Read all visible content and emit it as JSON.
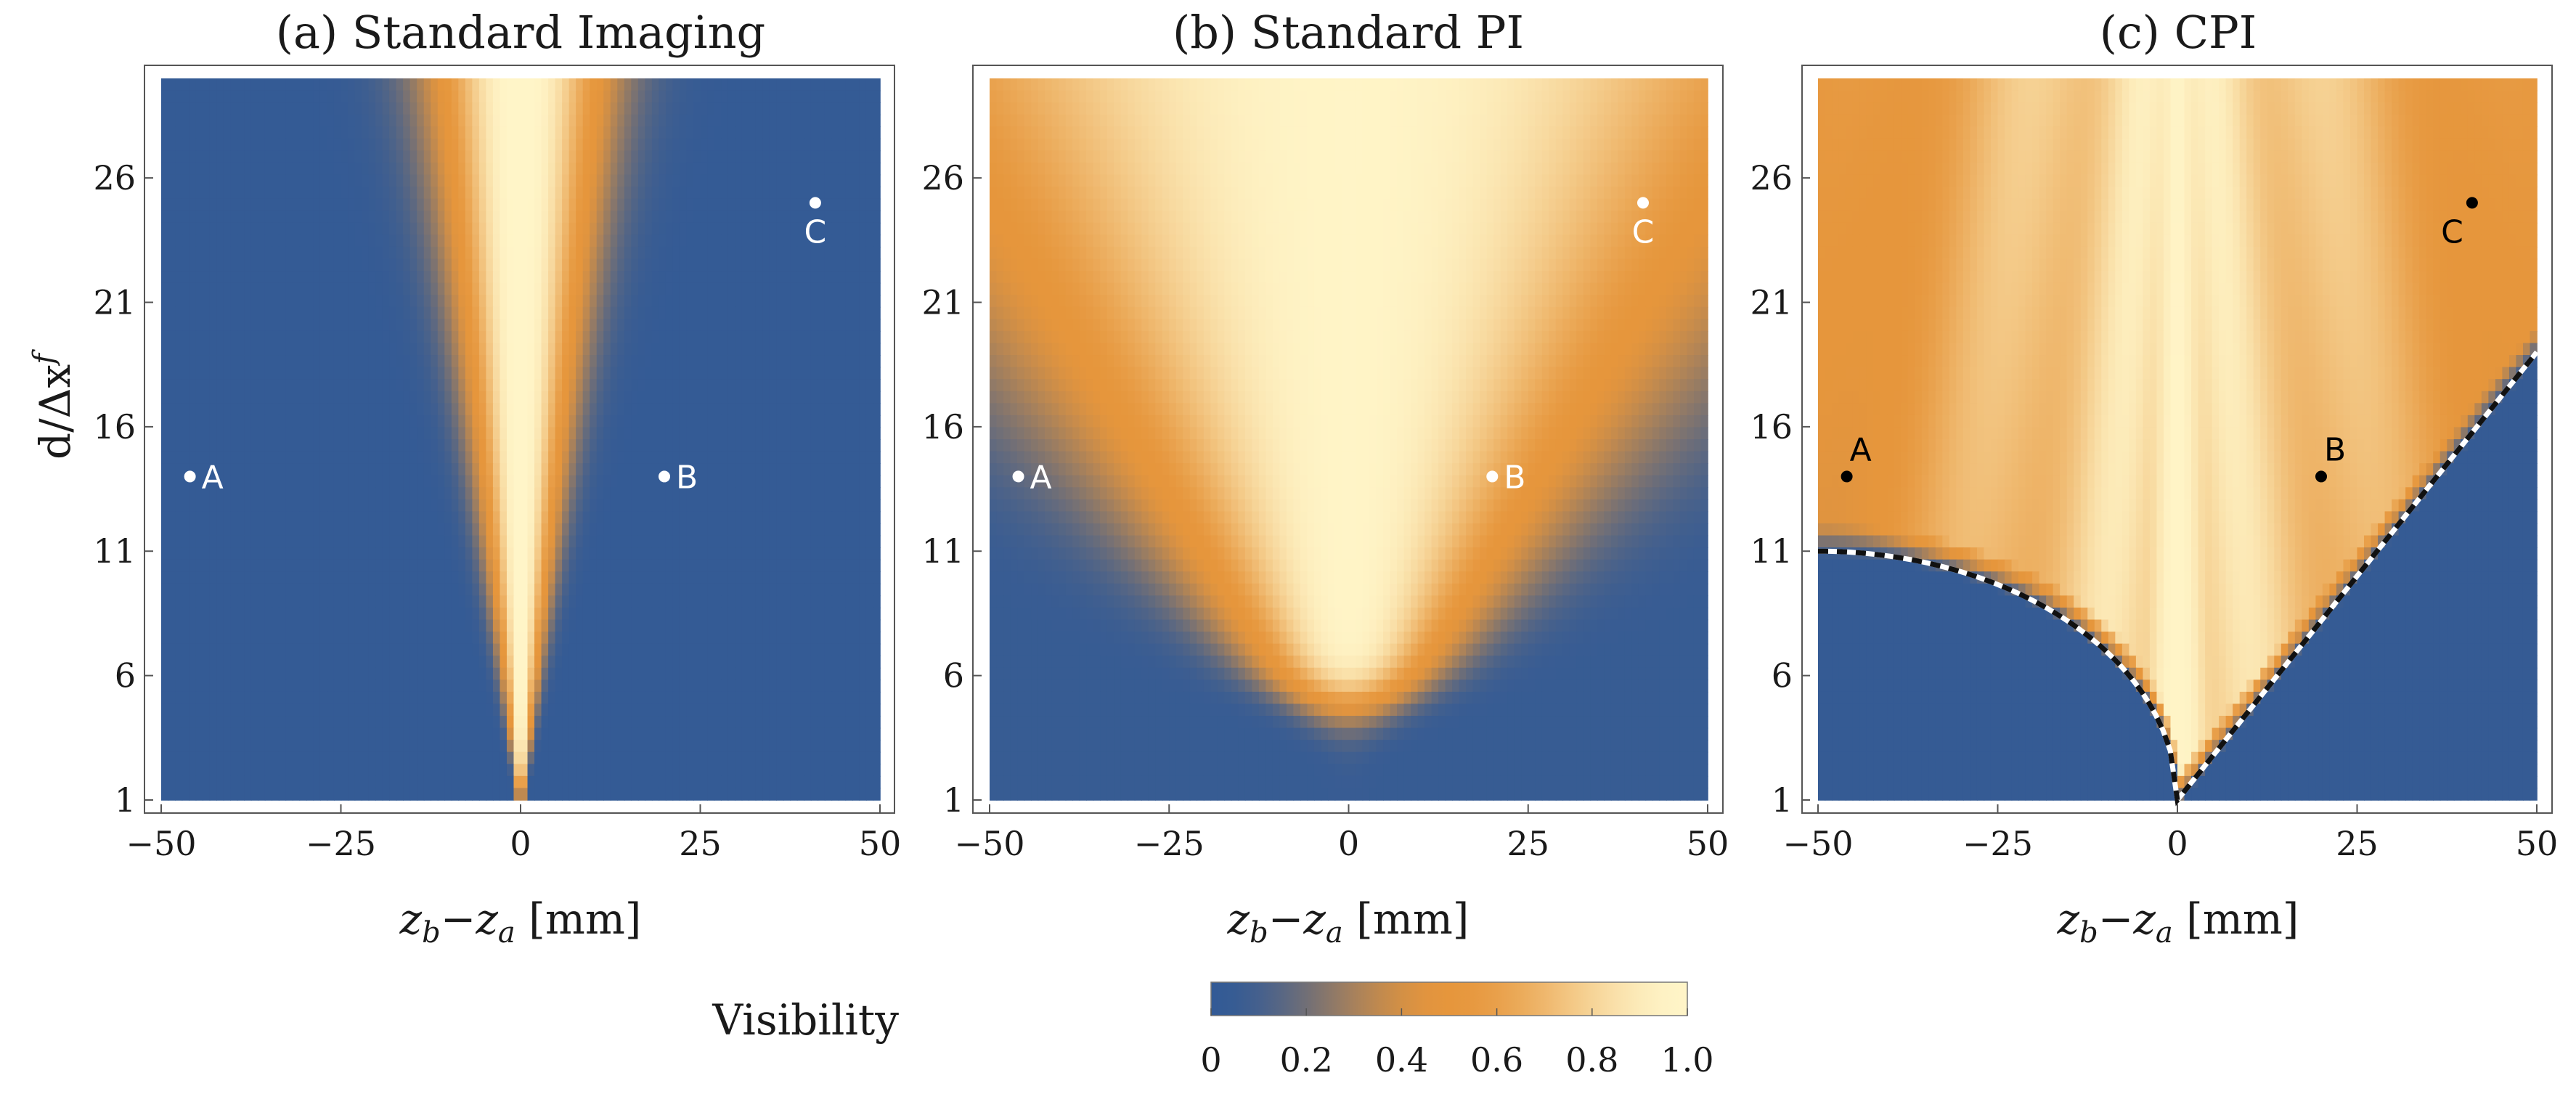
{
  "colors": {
    "low": "#325a96",
    "mid": "#e6963c",
    "high": "#fff5c8",
    "frame": "#555555",
    "point_light": "#ffffff",
    "point_dark": "#000000"
  },
  "ylabel": "d/Δx",
  "ylabel_sup": "f",
  "xlabel_main": "z",
  "xlabel_sub_b": "b",
  "xlabel_minus": "−",
  "xlabel_sub_a": "a",
  "xlabel_unit": " [mm]",
  "colorbar": {
    "label": "Visibility",
    "range": [
      0,
      1
    ],
    "ticks": [
      "0",
      "0.2",
      "0.4",
      "0.6",
      "0.8",
      "1.0"
    ]
  },
  "chart_data": [
    {
      "type": "heatmap",
      "id": "a",
      "title": "(a) Standard Imaging",
      "xlim": [
        -50,
        50
      ],
      "ylim": [
        1,
        30
      ],
      "xticks": [
        -50,
        -25,
        0,
        25,
        50
      ],
      "xtick_labels": [
        "−50",
        "−25",
        "0",
        "25",
        "50"
      ],
      "yticks": [
        1,
        6,
        11,
        16,
        21,
        26
      ],
      "ytick_labels": [
        "1",
        "6",
        "11",
        "16",
        "21",
        "26"
      ],
      "zlim": [
        0,
        1
      ],
      "points": [
        {
          "label": "A",
          "x": -46,
          "y": 14,
          "label_position": "right"
        },
        {
          "label": "B",
          "x": 20,
          "y": 14,
          "label_position": "right"
        },
        {
          "label": "C",
          "x": 41,
          "y": 25,
          "label_position": "below"
        }
      ],
      "boundary": false
    },
    {
      "type": "heatmap",
      "id": "b",
      "title": "(b) Standard PI",
      "xlim": [
        -50,
        50
      ],
      "ylim": [
        1,
        30
      ],
      "xticks": [
        -50,
        -25,
        0,
        25,
        50
      ],
      "xtick_labels": [
        "−50",
        "−25",
        "0",
        "25",
        "50"
      ],
      "yticks": [
        1,
        6,
        11,
        16,
        21,
        26
      ],
      "ytick_labels": [
        "1",
        "6",
        "11",
        "16",
        "21",
        "26"
      ],
      "zlim": [
        0,
        1
      ],
      "points": [
        {
          "label": "A",
          "x": -46,
          "y": 14,
          "label_position": "right"
        },
        {
          "label": "B",
          "x": 20,
          "y": 14,
          "label_position": "right"
        },
        {
          "label": "C",
          "x": 41,
          "y": 25,
          "label_position": "below"
        }
      ],
      "boundary": false
    },
    {
      "type": "heatmap",
      "id": "c",
      "title": "(c) CPI",
      "xlim": [
        -50,
        50
      ],
      "ylim": [
        1,
        30
      ],
      "xticks": [
        -50,
        -25,
        0,
        25,
        50
      ],
      "xtick_labels": [
        "−50",
        "−25",
        "0",
        "25",
        "50"
      ],
      "yticks": [
        1,
        6,
        11,
        16,
        21,
        26
      ],
      "ytick_labels": [
        "1",
        "6",
        "11",
        "16",
        "21",
        "26"
      ],
      "zlim": [
        0,
        1
      ],
      "points": [
        {
          "label": "A",
          "x": -46,
          "y": 14,
          "label_position": "above"
        },
        {
          "label": "B",
          "x": 20,
          "y": 14,
          "label_position": "above"
        },
        {
          "label": "C",
          "x": 41,
          "y": 25,
          "label_position": "below-left"
        }
      ],
      "boundary": true
    }
  ]
}
